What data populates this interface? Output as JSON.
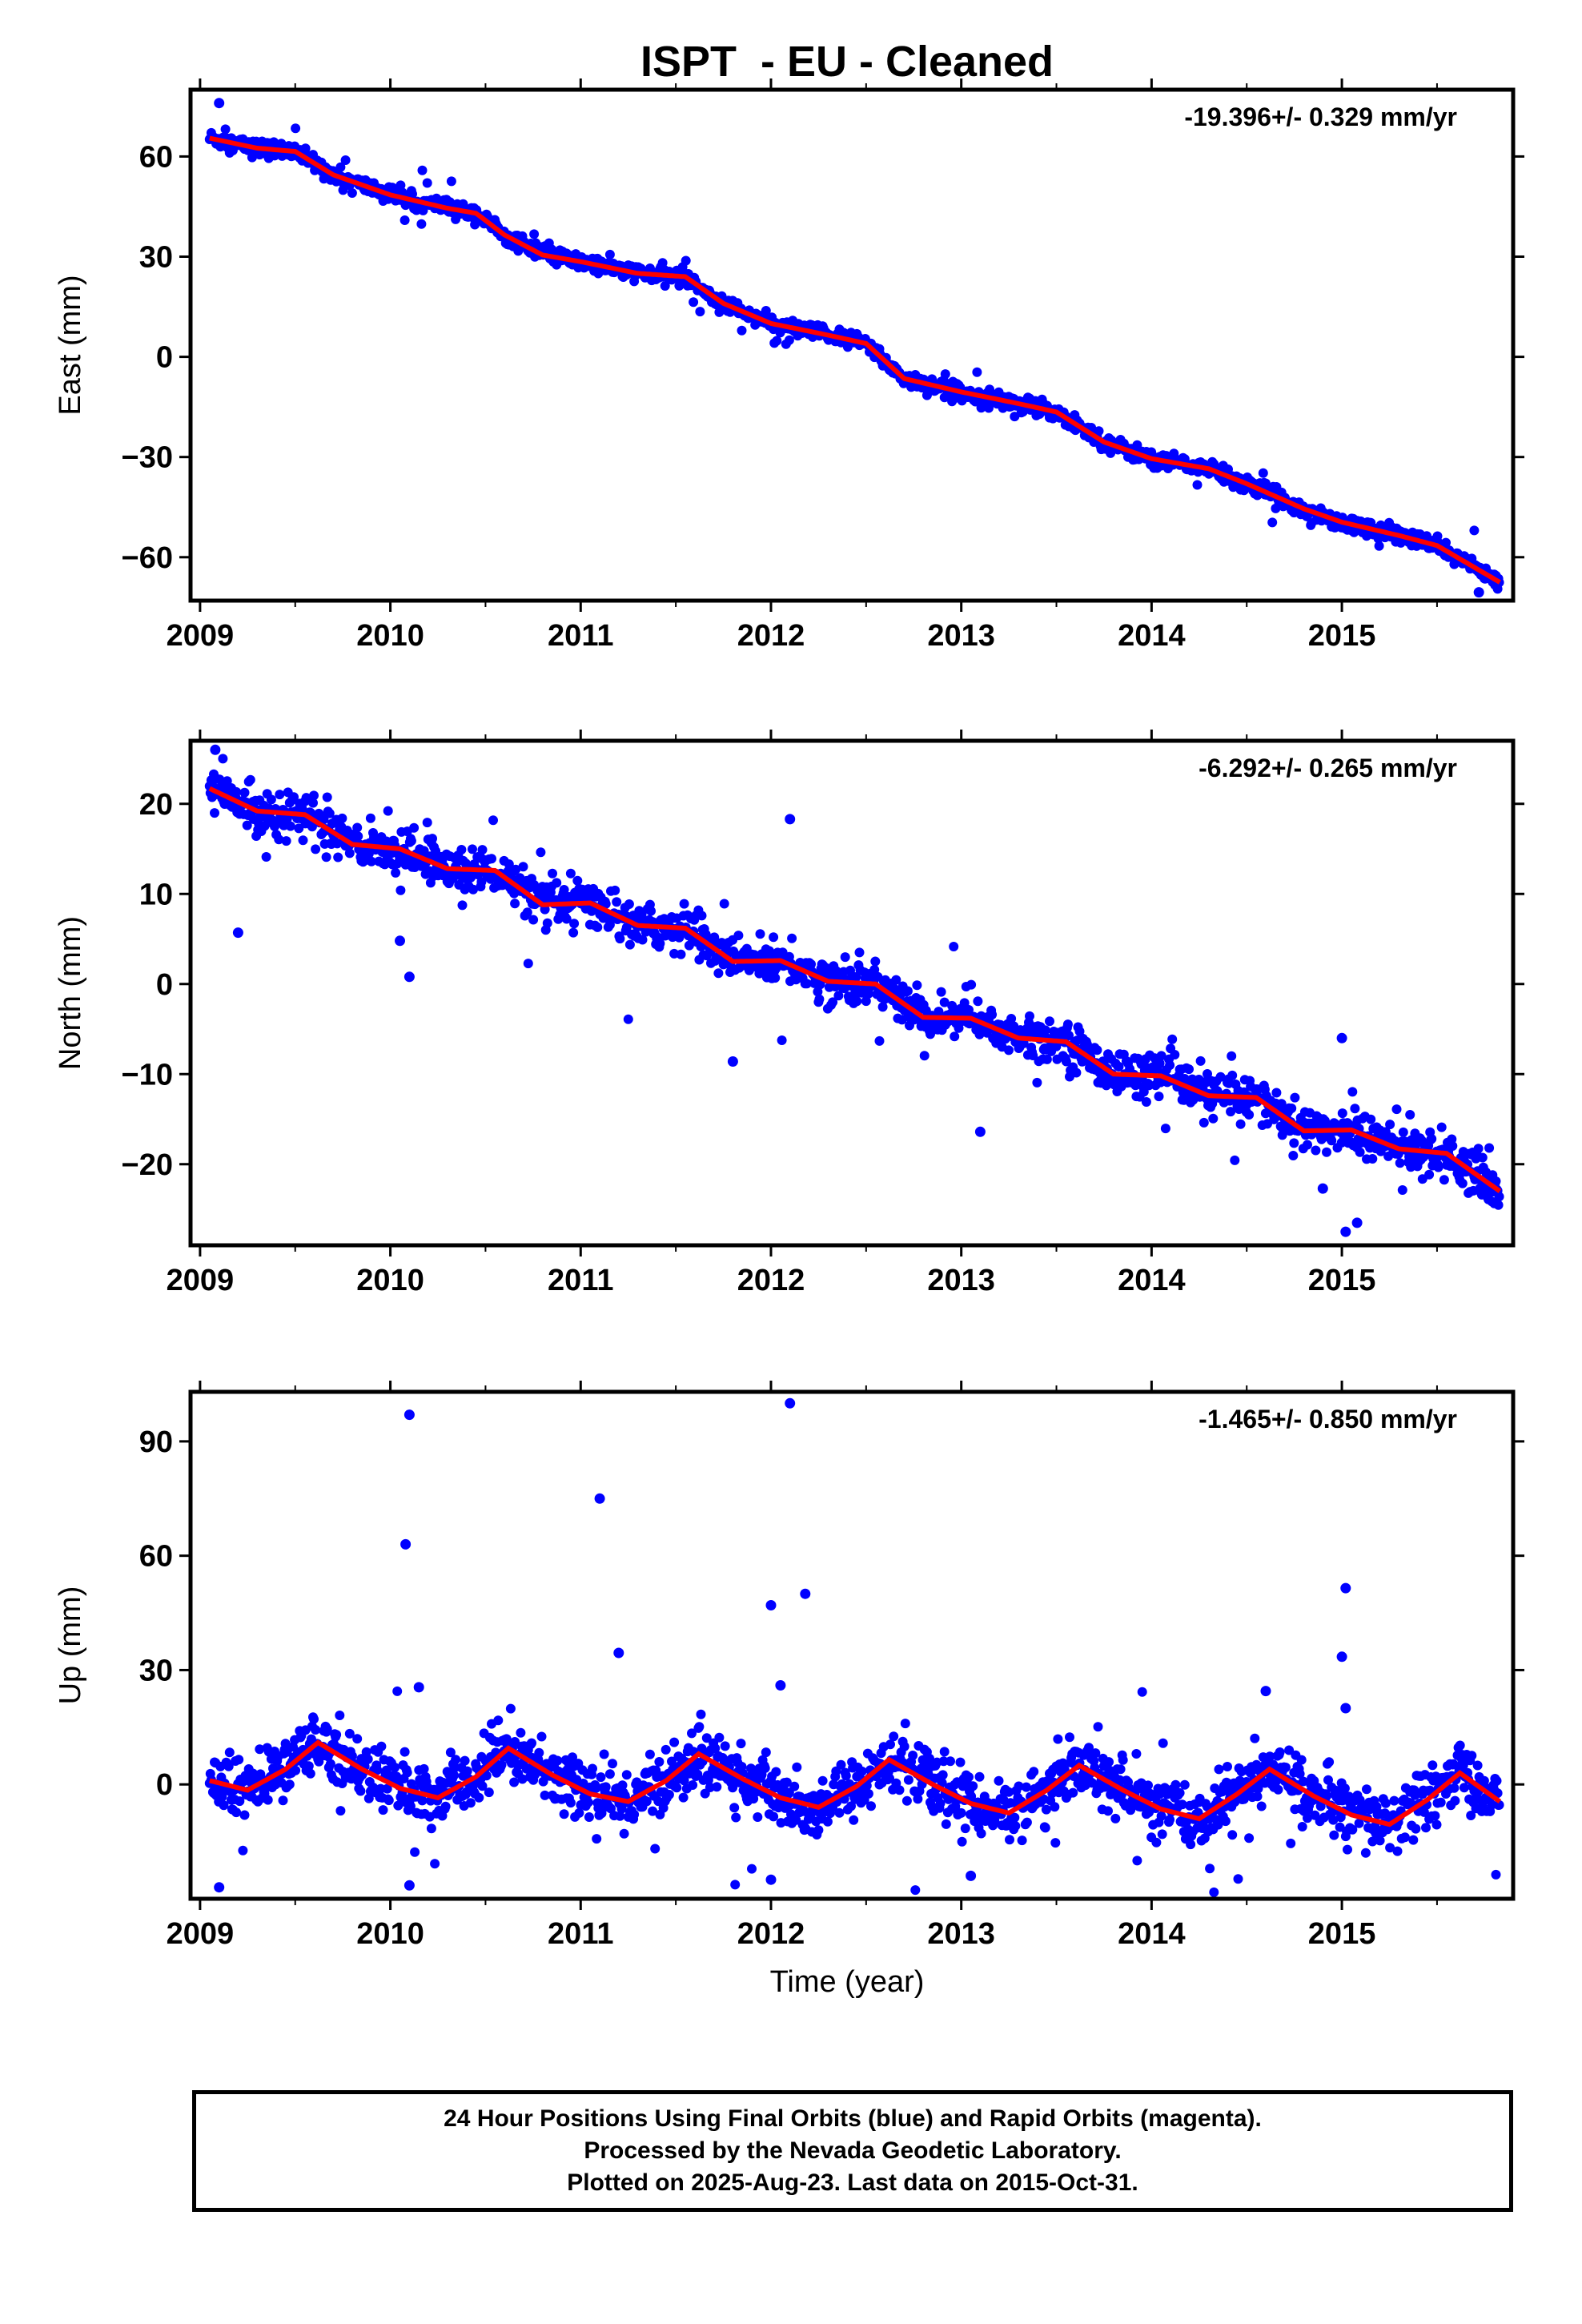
{
  "title": "ISPT  - EU - Cleaned",
  "xlabel": "Time (year)",
  "colors": {
    "data": "#0000ff",
    "fit": "#ff0000",
    "axes": "#000000"
  },
  "footer": [
    "24 Hour Positions Using Final Orbits (blue) and Rapid Orbits (magenta).",
    "Processed by the Nevada Geodetic Laboratory.",
    "Plotted on 2025-Aug-23. Last data on 2015-Oct-31."
  ],
  "chart_data": [
    {
      "type": "scatter",
      "panel": "east",
      "ylabel": "East (mm)",
      "rate_text": "-19.396+/- 0.329 mm/yr",
      "xlim": [
        2008.95,
        2015.9
      ],
      "ylim": [
        -73,
        80
      ],
      "xticks": [
        2009,
        2010,
        2011,
        2012,
        2013,
        2014,
        2015
      ],
      "yticks": [
        -60,
        -30,
        0,
        30,
        60
      ],
      "time_range": [
        2009.05,
        2015.83
      ],
      "trend": {
        "rate": -19.396,
        "value_at_2009": 66.5,
        "seasonal_amp": 1.4,
        "phase": 0.2
      },
      "scatter_sd": 1.2,
      "fit_points": [
        [
          2009.05,
          65.5
        ],
        [
          2009.3,
          62.5
        ],
        [
          2009.5,
          61.5
        ],
        [
          2009.7,
          54.5
        ],
        [
          2010.0,
          48.5
        ],
        [
          2010.3,
          44.5
        ],
        [
          2010.45,
          43.0
        ],
        [
          2010.6,
          36.5
        ],
        [
          2010.8,
          30.5
        ],
        [
          2011.0,
          28.5
        ],
        [
          2011.3,
          25.0
        ],
        [
          2011.55,
          24.0
        ],
        [
          2011.75,
          16.0
        ],
        [
          2012.0,
          10.0
        ],
        [
          2012.3,
          6.5
        ],
        [
          2012.5,
          4.0
        ],
        [
          2012.7,
          -6.5
        ],
        [
          2013.0,
          -10.5
        ],
        [
          2013.3,
          -14.0
        ],
        [
          2013.5,
          -16.5
        ],
        [
          2013.75,
          -25.5
        ],
        [
          2014.0,
          -30.5
        ],
        [
          2014.3,
          -33.5
        ],
        [
          2014.5,
          -38.0
        ],
        [
          2014.8,
          -45.5
        ],
        [
          2015.0,
          -49.5
        ],
        [
          2015.3,
          -53.5
        ],
        [
          2015.5,
          -56.5
        ],
        [
          2015.83,
          -67.5
        ]
      ],
      "outliers": [
        [
          2009.1,
          76.0
        ],
        [
          2015.72,
          -70.5
        ]
      ]
    },
    {
      "type": "scatter",
      "panel": "north",
      "ylabel": "North (mm)",
      "rate_text": "-6.292+/- 0.265 mm/yr",
      "xlim": [
        2008.95,
        2015.9
      ],
      "ylim": [
        -29,
        27
      ],
      "xticks": [
        2009,
        2010,
        2011,
        2012,
        2013,
        2014,
        2015
      ],
      "yticks": [
        -20,
        -10,
        0,
        10,
        20
      ],
      "time_range": [
        2009.05,
        2015.83
      ],
      "trend": {
        "rate": -6.292,
        "value_at_2009": 21.5,
        "seasonal_amp": 1.5,
        "phase": 0.3
      },
      "scatter_sd": 1.2,
      "fit_points": [
        [
          2009.05,
          21.7
        ],
        [
          2009.3,
          19.2
        ],
        [
          2009.55,
          18.8
        ],
        [
          2009.8,
          15.5
        ],
        [
          2010.05,
          15.0
        ],
        [
          2010.3,
          12.8
        ],
        [
          2010.55,
          12.6
        ],
        [
          2010.8,
          8.8
        ],
        [
          2011.05,
          9.0
        ],
        [
          2011.3,
          6.5
        ],
        [
          2011.55,
          6.2
        ],
        [
          2011.8,
          2.5
        ],
        [
          2012.05,
          2.6
        ],
        [
          2012.3,
          0.3
        ],
        [
          2012.55,
          0.0
        ],
        [
          2012.8,
          -3.7
        ],
        [
          2013.05,
          -3.8
        ],
        [
          2013.3,
          -6.0
        ],
        [
          2013.55,
          -6.4
        ],
        [
          2013.8,
          -10.0
        ],
        [
          2014.05,
          -10.2
        ],
        [
          2014.3,
          -12.4
        ],
        [
          2014.55,
          -12.6
        ],
        [
          2014.8,
          -16.3
        ],
        [
          2015.05,
          -16.2
        ],
        [
          2015.3,
          -18.3
        ],
        [
          2015.55,
          -18.8
        ],
        [
          2015.83,
          -23.0
        ]
      ],
      "outliers": [
        [
          2009.08,
          26.0
        ],
        [
          2009.2,
          5.7
        ],
        [
          2010.1,
          0.8
        ],
        [
          2010.05,
          4.8
        ],
        [
          2011.8,
          -8.6
        ],
        [
          2012.1,
          18.3
        ],
        [
          2012.45,
          -0.5
        ],
        [
          2013.1,
          -16.4
        ],
        [
          2015.02,
          -27.5
        ],
        [
          2015.08,
          -26.5
        ],
        [
          2015.0,
          -6.0
        ],
        [
          2014.9,
          -22.7
        ]
      ]
    },
    {
      "type": "scatter",
      "panel": "up",
      "ylabel": "Up (mm)",
      "rate_text": "-1.465+/- 0.850 mm/yr",
      "xlim": [
        2008.95,
        2015.9
      ],
      "ylim": [
        -30,
        103
      ],
      "xticks": [
        2009,
        2010,
        2011,
        2012,
        2013,
        2014,
        2015
      ],
      "yticks": [
        0,
        30,
        60,
        90
      ],
      "time_range": [
        2009.05,
        2015.83
      ],
      "trend": {
        "rate": -1.465,
        "value_at_2009": 1.5,
        "seasonal_amp": 8.0,
        "phase": 0.62
      },
      "scatter_sd": 4.0,
      "fit_points": [
        [
          2009.05,
          1.0
        ],
        [
          2009.25,
          -1.5
        ],
        [
          2009.45,
          4.0
        ],
        [
          2009.62,
          11.0
        ],
        [
          2009.85,
          4.0
        ],
        [
          2010.05,
          -1.0
        ],
        [
          2010.25,
          -3.5
        ],
        [
          2010.45,
          2.0
        ],
        [
          2010.62,
          9.5
        ],
        [
          2010.85,
          2.5
        ],
        [
          2011.05,
          -2.5
        ],
        [
          2011.25,
          -4.5
        ],
        [
          2011.45,
          1.0
        ],
        [
          2011.62,
          8.0
        ],
        [
          2011.85,
          1.5
        ],
        [
          2012.05,
          -3.5
        ],
        [
          2012.25,
          -6.0
        ],
        [
          2012.45,
          -0.5
        ],
        [
          2012.62,
          6.5
        ],
        [
          2012.85,
          0.0
        ],
        [
          2013.05,
          -5.0
        ],
        [
          2013.25,
          -7.5
        ],
        [
          2013.45,
          -1.5
        ],
        [
          2013.62,
          5.0
        ],
        [
          2013.85,
          -1.5
        ],
        [
          2014.05,
          -6.5
        ],
        [
          2014.25,
          -9.0
        ],
        [
          2014.45,
          -2.5
        ],
        [
          2014.62,
          4.0
        ],
        [
          2014.85,
          -3.0
        ],
        [
          2015.05,
          -8.0
        ],
        [
          2015.25,
          -10.5
        ],
        [
          2015.45,
          -4.0
        ],
        [
          2015.62,
          3.0
        ],
        [
          2015.83,
          -4.5
        ]
      ],
      "outliers": [
        [
          2010.1,
          97.0
        ],
        [
          2010.08,
          63.0
        ],
        [
          2010.15,
          25.5
        ],
        [
          2011.1,
          75.0
        ],
        [
          2011.2,
          34.5
        ],
        [
          2012.1,
          100.0
        ],
        [
          2012.0,
          47.0
        ],
        [
          2012.18,
          50.0
        ],
        [
          2012.05,
          26.0
        ],
        [
          2009.1,
          -27.0
        ],
        [
          2010.1,
          -26.5
        ],
        [
          2012.0,
          -25.0
        ],
        [
          2013.05,
          -24.0
        ],
        [
          2015.02,
          51.5
        ],
        [
          2015.0,
          33.5
        ],
        [
          2015.02,
          20.0
        ],
        [
          2014.6,
          24.5
        ]
      ]
    }
  ]
}
